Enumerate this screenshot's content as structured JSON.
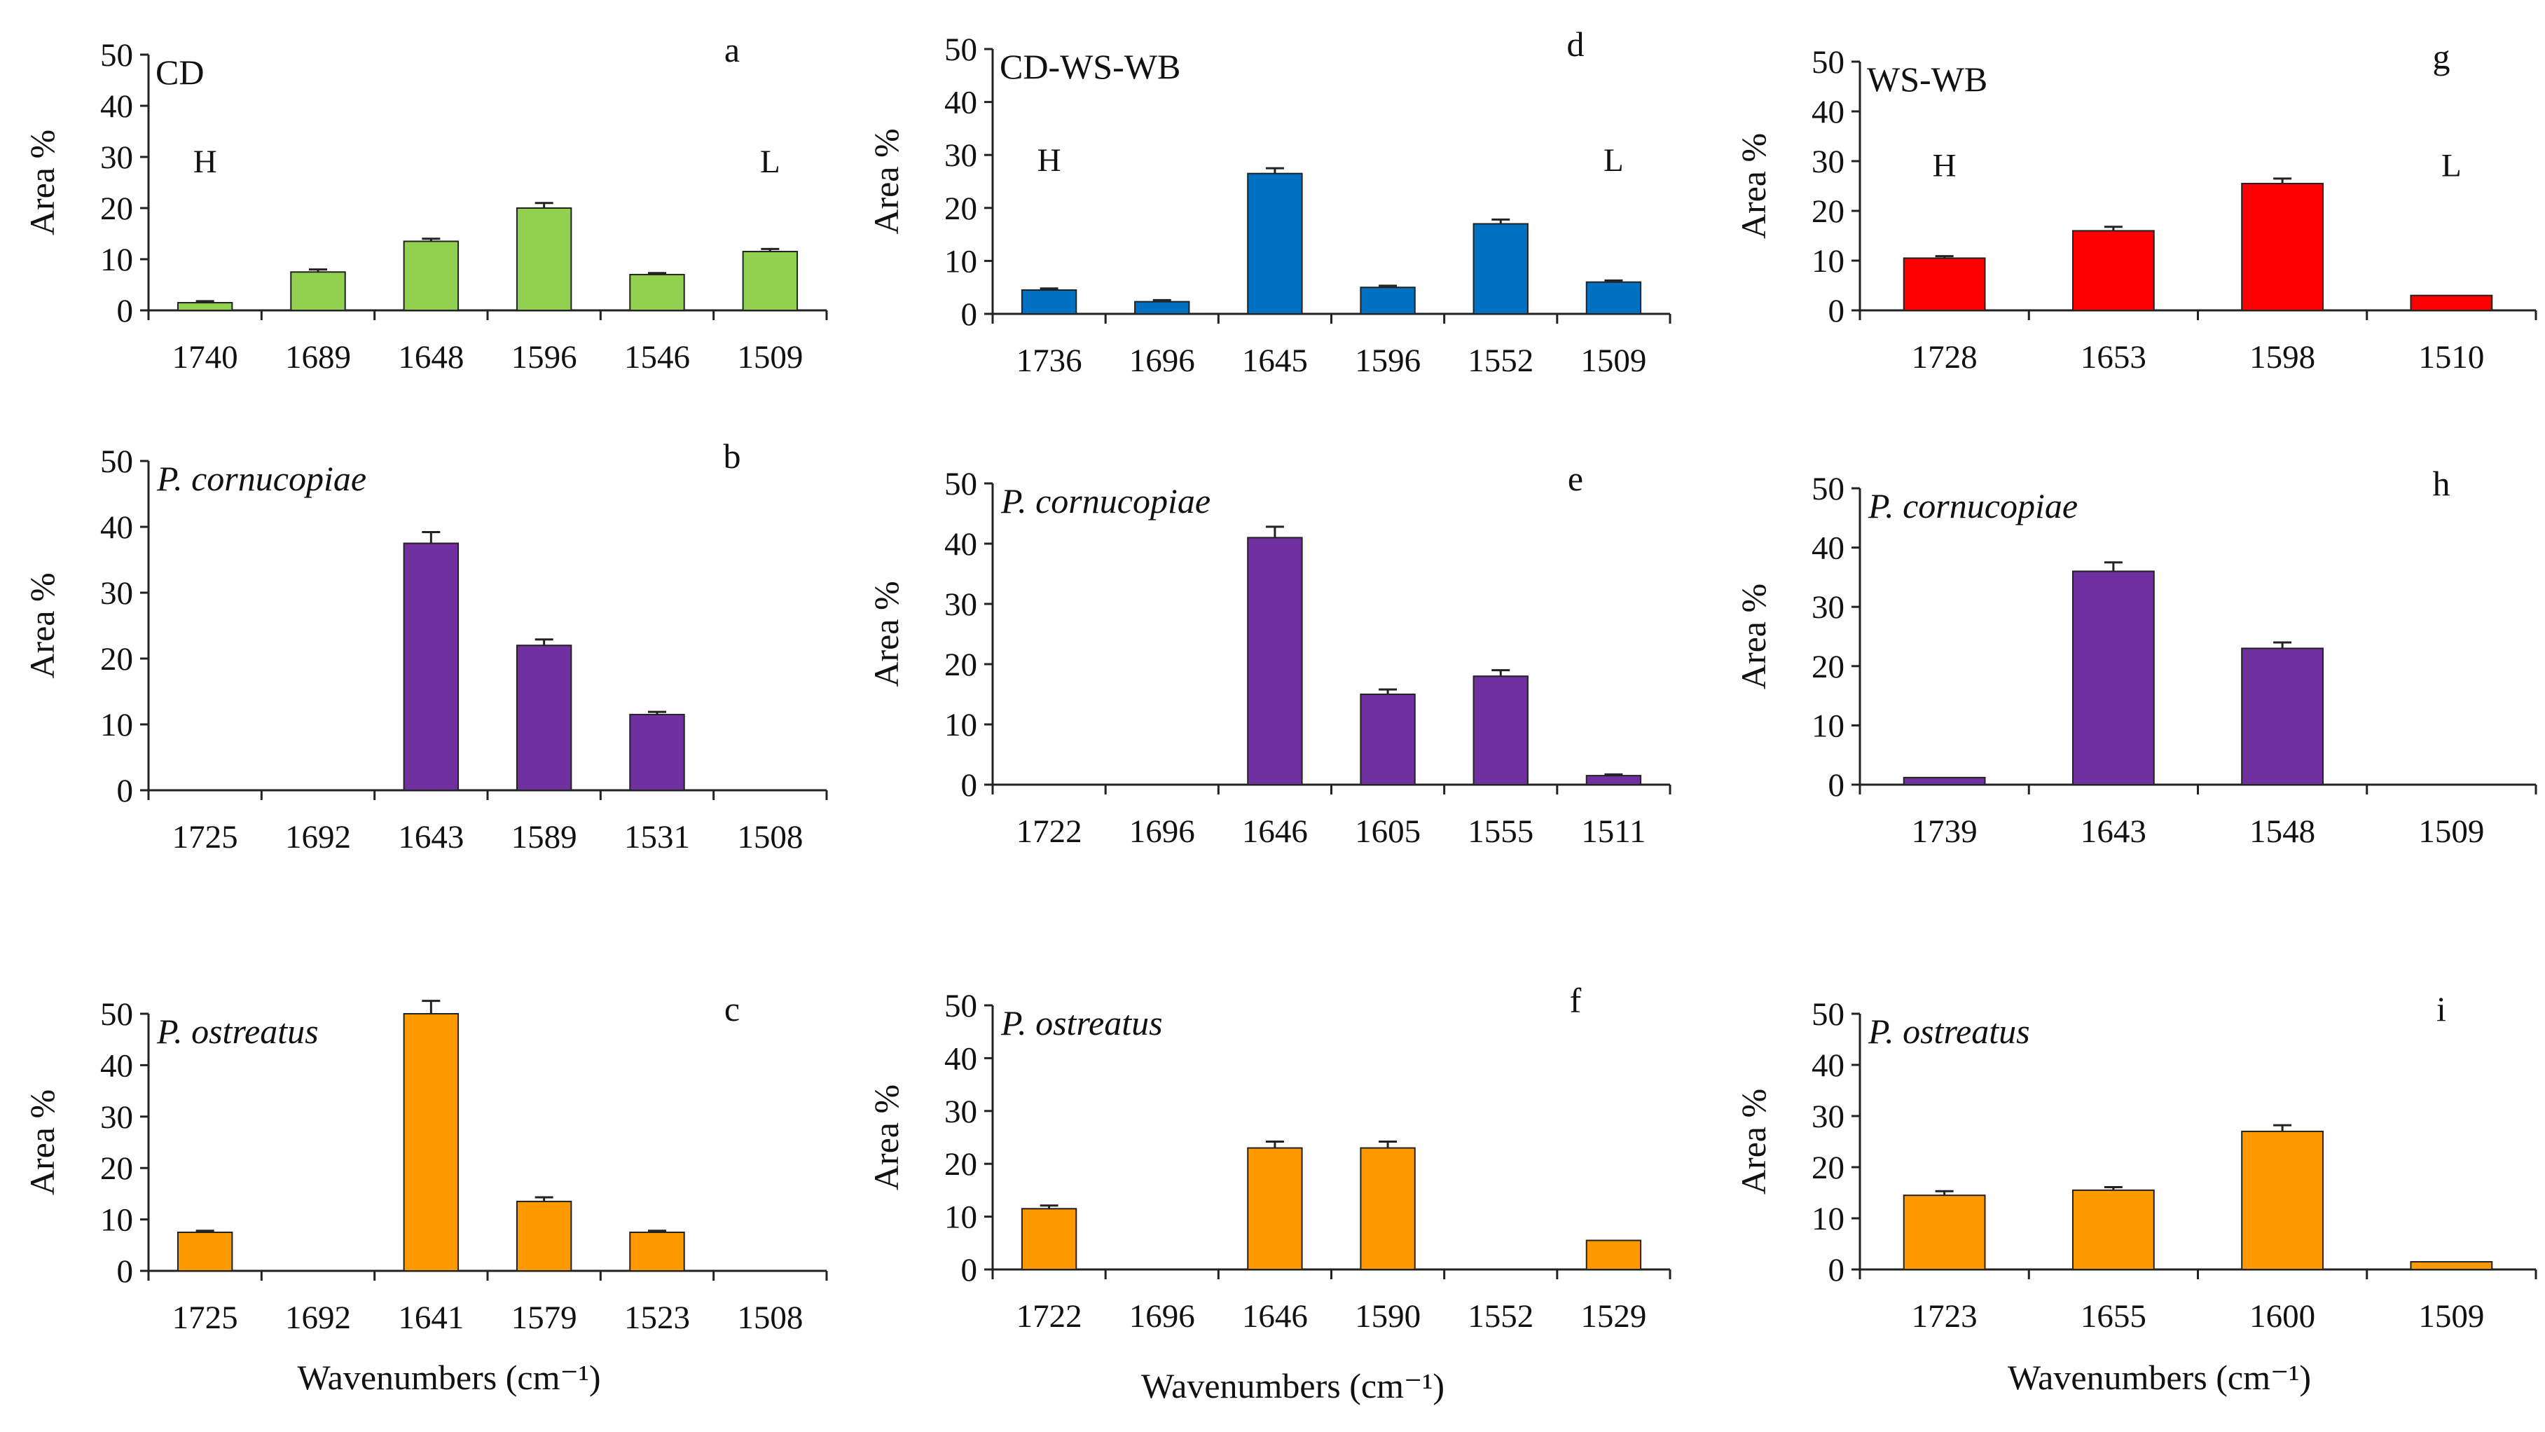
{
  "chart_data": [
    {
      "id": "a",
      "type": "bar",
      "title": "CD",
      "italic": false,
      "letter": "a",
      "ylabel": "Area %",
      "ylim": [
        0,
        50
      ],
      "yticks": [
        0,
        10,
        20,
        30,
        40,
        50
      ],
      "categories": [
        "1740",
        "1689",
        "1648",
        "1596",
        "1546",
        "1509"
      ],
      "values": [
        1.5,
        7.5,
        13.5,
        20,
        7,
        11.5
      ],
      "errors": [
        0.3,
        0.5,
        0.5,
        1.0,
        0.3,
        0.5
      ],
      "color": "#92d050",
      "hl": [
        "H",
        "L"
      ],
      "xlabel": ""
    },
    {
      "id": "d",
      "type": "bar",
      "title": "CD-WS-WB",
      "italic": false,
      "letter": "d",
      "ylabel": "Area %",
      "ylim": [
        0,
        50
      ],
      "yticks": [
        0,
        10,
        20,
        30,
        40,
        50
      ],
      "categories": [
        "1736",
        "1696",
        "1645",
        "1596",
        "1552",
        "1509"
      ],
      "values": [
        4.5,
        2.3,
        26.5,
        5,
        17,
        6
      ],
      "errors": [
        0.3,
        0.3,
        1.0,
        0.3,
        0.8,
        0.3
      ],
      "color": "#0070c0",
      "hl": [
        "H",
        "L"
      ],
      "xlabel": ""
    },
    {
      "id": "g",
      "type": "bar",
      "title": "WS-WB",
      "italic": false,
      "letter": "g",
      "ylabel": "Area %",
      "ylim": [
        0,
        50
      ],
      "yticks": [
        0,
        10,
        20,
        30,
        40,
        50
      ],
      "categories": [
        "1728",
        "1653",
        "1598",
        "1510"
      ],
      "values": [
        10.5,
        16,
        25.5,
        3
      ],
      "errors": [
        0.4,
        0.8,
        1.0,
        0
      ],
      "color": "#ff0000",
      "hl": [
        "H",
        "L"
      ],
      "xlabel": ""
    },
    {
      "id": "b",
      "type": "bar",
      "title": "P. cornucopiae",
      "italic": true,
      "letter": "b",
      "ylabel": "Area %",
      "ylim": [
        0,
        50
      ],
      "yticks": [
        0,
        10,
        20,
        30,
        40,
        50
      ],
      "categories": [
        "1725",
        "1692",
        "1643",
        "1589",
        "1531",
        "1508"
      ],
      "values": [
        0,
        0,
        37.5,
        22,
        11.5,
        0
      ],
      "errors": [
        0,
        0,
        1.7,
        0.9,
        0.4,
        0
      ],
      "color": "#7030a0",
      "hl": [],
      "xlabel": ""
    },
    {
      "id": "e",
      "type": "bar",
      "title": "P. cornucopiae",
      "italic": true,
      "letter": "e",
      "ylabel": "Area %",
      "ylim": [
        0,
        50
      ],
      "yticks": [
        0,
        10,
        20,
        30,
        40,
        50
      ],
      "categories": [
        "1722",
        "1696",
        "1646",
        "1605",
        "1555",
        "1511"
      ],
      "values": [
        0,
        0,
        41,
        15,
        18,
        1.5
      ],
      "errors": [
        0,
        0,
        1.8,
        0.8,
        1.0,
        0.2
      ],
      "color": "#7030a0",
      "hl": [],
      "xlabel": ""
    },
    {
      "id": "h",
      "type": "bar",
      "title": "P. cornucopiae",
      "italic": true,
      "letter": "h",
      "ylabel": "Area %",
      "ylim": [
        0,
        50
      ],
      "yticks": [
        0,
        10,
        20,
        30,
        40,
        50
      ],
      "categories": [
        "1739",
        "1643",
        "1548",
        "1509"
      ],
      "values": [
        1.2,
        36,
        23,
        0
      ],
      "errors": [
        0,
        1.5,
        1.0,
        0
      ],
      "color": "#7030a0",
      "hl": [],
      "xlabel": ""
    },
    {
      "id": "c",
      "type": "bar",
      "title": "P. ostreatus",
      "italic": true,
      "letter": "c",
      "ylabel": "Area %",
      "ylim": [
        0,
        50
      ],
      "yticks": [
        0,
        10,
        20,
        30,
        40,
        50
      ],
      "categories": [
        "1725",
        "1692",
        "1641",
        "1579",
        "1523",
        "1508"
      ],
      "values": [
        7.5,
        0,
        50,
        13.5,
        7.5,
        0
      ],
      "errors": [
        0.3,
        0,
        2.5,
        0.8,
        0.3,
        0
      ],
      "color": "#ff9900",
      "hl": [],
      "xlabel": "Wavenumbers (cm⁻¹)"
    },
    {
      "id": "f",
      "type": "bar",
      "title": "P. ostreatus",
      "italic": true,
      "letter": "f",
      "ylabel": "Area %",
      "ylim": [
        0,
        50
      ],
      "yticks": [
        0,
        10,
        20,
        30,
        40,
        50
      ],
      "categories": [
        "1722",
        "1696",
        "1646",
        "1590",
        "1552",
        "1529"
      ],
      "values": [
        11.5,
        0,
        23,
        23,
        0,
        5.5
      ],
      "errors": [
        0.6,
        0,
        1.2,
        1.2,
        0,
        0
      ],
      "color": "#ff9900",
      "hl": [],
      "xlabel": "Wavenumbers (cm⁻¹)"
    },
    {
      "id": "i",
      "type": "bar",
      "title": "P. ostreatus",
      "italic": true,
      "letter": "i",
      "ylabel": "Area %",
      "ylim": [
        0,
        50
      ],
      "yticks": [
        0,
        10,
        20,
        30,
        40,
        50
      ],
      "categories": [
        "1723",
        "1655",
        "1600",
        "1509"
      ],
      "values": [
        14.5,
        15.5,
        27,
        1.5
      ],
      "errors": [
        0.8,
        0.6,
        1.2,
        0
      ],
      "color": "#ff9900",
      "hl": [],
      "xlabel": "Wavenumbers (cm⁻¹)"
    }
  ]
}
